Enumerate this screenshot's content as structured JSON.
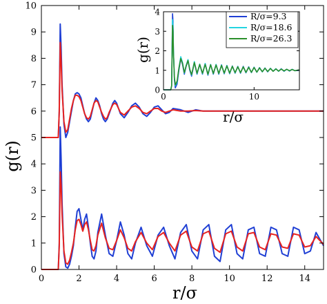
{
  "chart_data": [
    {
      "type": "line",
      "role": "main",
      "xlabel": "r/σ",
      "ylabel": "g(r)",
      "xlim": [
        0,
        15
      ],
      "ylim": [
        0,
        10
      ],
      "x_ticks": [
        0,
        2,
        4,
        6,
        8,
        10,
        12,
        14
      ],
      "y_ticks": [
        0,
        1,
        2,
        3,
        4,
        5,
        6,
        7,
        8,
        9,
        10
      ],
      "grid": false,
      "colors": {
        "blue": "#1f3fd4",
        "red": "#e8231f"
      },
      "series": [
        {
          "color": "blue",
          "curve": "offset",
          "x": [
            0,
            0.8,
            0.9,
            0.95,
            1.0,
            1.05,
            1.1,
            1.2,
            1.3,
            1.4,
            1.5,
            1.6,
            1.7,
            1.8,
            1.9,
            2.0,
            2.1,
            2.2,
            2.3,
            2.4,
            2.5,
            2.6,
            2.7,
            2.8,
            2.9,
            3.0,
            3.1,
            3.2,
            3.3,
            3.4,
            3.5,
            3.6,
            3.7,
            3.8,
            3.9,
            4.0,
            4.2,
            4.4,
            4.6,
            4.8,
            5.0,
            5.2,
            5.4,
            5.6,
            5.8,
            6.0,
            6.2,
            6.4,
            6.6,
            6.8,
            7.0,
            7.4,
            7.8,
            8.2,
            8.6,
            9.0,
            9.5,
            10.0,
            11.0,
            12.0,
            13.0,
            14.0,
            15.0
          ],
          "y": [
            5.0,
            5.0,
            5.0,
            6.0,
            9.3,
            8.4,
            7.0,
            5.5,
            5.0,
            5.2,
            5.6,
            6.0,
            6.4,
            6.65,
            6.7,
            6.65,
            6.5,
            6.2,
            5.9,
            5.7,
            5.6,
            5.7,
            6.0,
            6.3,
            6.5,
            6.4,
            6.2,
            5.9,
            5.7,
            5.6,
            5.7,
            5.9,
            6.1,
            6.3,
            6.4,
            6.3,
            5.9,
            5.75,
            5.95,
            6.2,
            6.3,
            6.15,
            5.9,
            5.8,
            5.95,
            6.15,
            6.2,
            6.05,
            5.9,
            5.95,
            6.1,
            6.05,
            5.95,
            6.05,
            6.0,
            6.0,
            6.0,
            6.0,
            6.0,
            6.0,
            6.0,
            6.0,
            6.0
          ]
        },
        {
          "color": "red",
          "curve": "offset",
          "x": [
            0,
            0.8,
            0.9,
            0.95,
            1.0,
            1.05,
            1.1,
            1.2,
            1.3,
            1.4,
            1.5,
            1.6,
            1.7,
            1.8,
            1.9,
            2.0,
            2.1,
            2.2,
            2.3,
            2.4,
            2.5,
            2.6,
            2.7,
            2.8,
            2.9,
            3.0,
            3.1,
            3.2,
            3.3,
            3.4,
            3.5,
            3.6,
            3.7,
            3.8,
            3.9,
            4.0,
            4.2,
            4.4,
            4.6,
            4.8,
            5.0,
            5.2,
            5.4,
            5.6,
            5.8,
            6.0,
            6.2,
            6.4,
            6.6,
            6.8,
            7.0,
            7.4,
            7.8,
            8.2,
            8.6,
            9.0,
            9.5,
            10.0,
            11.0,
            12.0,
            13.0,
            14.0,
            15.0
          ],
          "y": [
            5.0,
            5.0,
            5.0,
            6.0,
            8.6,
            7.9,
            6.8,
            5.6,
            5.2,
            5.3,
            5.7,
            6.1,
            6.4,
            6.6,
            6.6,
            6.55,
            6.4,
            6.15,
            5.9,
            5.75,
            5.7,
            5.8,
            6.05,
            6.3,
            6.4,
            6.35,
            6.15,
            5.95,
            5.8,
            5.7,
            5.75,
            5.95,
            6.1,
            6.25,
            6.3,
            6.25,
            5.95,
            5.85,
            6.0,
            6.15,
            6.2,
            6.1,
            5.95,
            5.9,
            6.0,
            6.1,
            6.1,
            6.0,
            5.95,
            6.0,
            6.05,
            6.0,
            6.0,
            6.02,
            6.0,
            6.0,
            6.0,
            6.0,
            6.0,
            6.0,
            6.0,
            6.0,
            6.0
          ]
        },
        {
          "color": "blue",
          "curve": "unshifted",
          "x": [
            0,
            0.8,
            0.9,
            0.95,
            1.0,
            1.05,
            1.1,
            1.2,
            1.3,
            1.4,
            1.5,
            1.6,
            1.7,
            1.8,
            1.9,
            2.0,
            2.1,
            2.2,
            2.3,
            2.4,
            2.5,
            2.6,
            2.7,
            2.8,
            2.9,
            3.0,
            3.2,
            3.4,
            3.6,
            3.8,
            4.0,
            4.2,
            4.4,
            4.6,
            4.8,
            5.0,
            5.3,
            5.6,
            5.9,
            6.2,
            6.5,
            6.8,
            7.1,
            7.4,
            7.7,
            8.0,
            8.3,
            8.6,
            8.9,
            9.2,
            9.5,
            9.8,
            10.1,
            10.4,
            10.7,
            11.0,
            11.3,
            11.6,
            11.9,
            12.2,
            12.5,
            12.8,
            13.1,
            13.4,
            13.7,
            14.0,
            14.3,
            14.6,
            15.0
          ],
          "y": [
            0,
            0,
            0,
            1.0,
            5.4,
            4.2,
            2.5,
            0.6,
            0.1,
            0.05,
            0.2,
            0.5,
            0.9,
            1.6,
            2.2,
            2.3,
            1.9,
            1.5,
            1.9,
            2.1,
            1.6,
            1.0,
            0.5,
            0.4,
            0.7,
            1.4,
            2.1,
            1.3,
            0.6,
            0.5,
            1.1,
            1.8,
            1.3,
            0.6,
            0.4,
            1.0,
            1.6,
            0.9,
            0.5,
            1.3,
            1.6,
            0.9,
            0.4,
            1.4,
            1.7,
            0.7,
            0.4,
            1.5,
            1.7,
            0.5,
            0.3,
            1.5,
            1.7,
            0.6,
            0.4,
            1.5,
            1.6,
            0.6,
            0.5,
            1.6,
            1.5,
            0.6,
            0.5,
            1.6,
            1.5,
            0.6,
            0.7,
            1.4,
            0.9
          ]
        },
        {
          "color": "red",
          "curve": "unshifted",
          "x": [
            0,
            0.8,
            0.9,
            0.95,
            1.0,
            1.05,
            1.1,
            1.2,
            1.3,
            1.4,
            1.5,
            1.6,
            1.7,
            1.8,
            1.9,
            2.0,
            2.1,
            2.2,
            2.3,
            2.4,
            2.5,
            2.6,
            2.7,
            2.8,
            2.9,
            3.0,
            3.2,
            3.4,
            3.6,
            3.8,
            4.0,
            4.2,
            4.4,
            4.6,
            4.8,
            5.0,
            5.3,
            5.6,
            5.9,
            6.2,
            6.5,
            6.8,
            7.1,
            7.4,
            7.7,
            8.0,
            8.3,
            8.6,
            8.9,
            9.2,
            9.5,
            9.8,
            10.1,
            10.4,
            10.7,
            11.0,
            11.3,
            11.6,
            11.9,
            12.2,
            12.5,
            12.8,
            13.1,
            13.4,
            13.7,
            14.0,
            14.3,
            14.6,
            15.0
          ],
          "y": [
            0,
            0,
            0,
            0.9,
            3.7,
            3.2,
            2.1,
            0.7,
            0.25,
            0.2,
            0.35,
            0.65,
            1.0,
            1.5,
            1.85,
            1.9,
            1.7,
            1.45,
            1.7,
            1.8,
            1.5,
            1.1,
            0.75,
            0.7,
            0.9,
            1.3,
            1.75,
            1.2,
            0.8,
            0.75,
            1.1,
            1.5,
            1.2,
            0.8,
            0.7,
            1.05,
            1.4,
            1.0,
            0.75,
            1.25,
            1.4,
            1.0,
            0.7,
            1.3,
            1.45,
            0.85,
            0.7,
            1.35,
            1.45,
            0.8,
            0.65,
            1.35,
            1.45,
            0.85,
            0.7,
            1.35,
            1.4,
            0.85,
            0.75,
            1.35,
            1.3,
            0.85,
            0.8,
            1.35,
            1.3,
            0.85,
            0.9,
            1.25,
            0.95
          ]
        }
      ]
    },
    {
      "type": "line",
      "role": "inset",
      "xlabel": "r/σ",
      "ylabel": "g(r)",
      "xlim": [
        0,
        15
      ],
      "ylim": [
        0,
        4
      ],
      "x_ticks": [
        0,
        10
      ],
      "y_ticks": [
        0,
        1,
        2,
        3,
        4
      ],
      "grid": false,
      "legend_placement": "top-right",
      "colors": {
        "R/σ=9.3": "#1f3fd4",
        "R/σ=18.6": "#22d3e0",
        "R/σ=26.3": "#2a8f2a"
      },
      "series": [
        {
          "name": "R/σ=9.3",
          "x": [
            0,
            0.8,
            0.9,
            1.0,
            1.05,
            1.1,
            1.2,
            1.3,
            1.5,
            1.7,
            1.9,
            2.1,
            2.3,
            2.5,
            2.7,
            2.9,
            3.1,
            3.4,
            3.7,
            4.0,
            4.3,
            4.6,
            4.9,
            5.2,
            5.5,
            5.8,
            6.1,
            6.4,
            6.7,
            7.0,
            7.3,
            7.6,
            7.9,
            8.2,
            8.5,
            8.8,
            9.1,
            9.4,
            9.7,
            10.0,
            10.3,
            10.6,
            10.9,
            11.2,
            11.5,
            11.8,
            12.1,
            12.4,
            12.7,
            13.0,
            13.3,
            13.6,
            13.9,
            14.2,
            14.5,
            15.0
          ],
          "y": [
            0,
            0,
            0.2,
            3.9,
            3.5,
            2.0,
            0.5,
            0.1,
            0.3,
            1.0,
            1.6,
            1.3,
            0.8,
            1.2,
            1.5,
            1.0,
            0.7,
            1.4,
            0.8,
            1.3,
            0.8,
            1.35,
            0.75,
            1.3,
            0.8,
            1.3,
            0.8,
            1.28,
            0.82,
            1.25,
            0.82,
            1.22,
            0.85,
            1.2,
            0.85,
            1.2,
            0.87,
            1.18,
            0.88,
            1.16,
            0.9,
            1.14,
            0.92,
            1.12,
            0.92,
            1.1,
            0.95,
            1.08,
            0.95,
            1.08,
            0.95,
            1.06,
            0.96,
            1.05,
            0.98,
            1.0
          ]
        },
        {
          "name": "R/σ=18.6",
          "x": [
            0,
            0.8,
            0.9,
            1.0,
            1.05,
            1.1,
            1.2,
            1.3,
            1.5,
            1.7,
            1.9,
            2.1,
            2.3,
            2.5,
            2.7,
            2.9,
            3.1,
            3.4,
            3.7,
            4.0,
            4.3,
            4.6,
            4.9,
            5.2,
            5.5,
            5.8,
            6.1,
            6.4,
            6.7,
            7.0,
            7.3,
            7.6,
            7.9,
            8.2,
            8.5,
            8.8,
            9.1,
            9.4,
            9.7,
            10.0,
            10.3,
            10.6,
            10.9,
            11.2,
            11.5,
            11.8,
            12.1,
            12.4,
            12.7,
            13.0,
            13.3,
            13.6,
            13.9,
            14.2,
            14.5,
            15.0
          ],
          "y": [
            0,
            0,
            0.2,
            3.6,
            3.3,
            2.0,
            0.6,
            0.2,
            0.4,
            1.1,
            1.7,
            1.4,
            0.85,
            1.25,
            1.55,
            1.05,
            0.75,
            1.45,
            0.82,
            1.32,
            0.82,
            1.35,
            0.78,
            1.3,
            0.82,
            1.3,
            0.82,
            1.27,
            0.84,
            1.24,
            0.84,
            1.21,
            0.86,
            1.19,
            0.87,
            1.18,
            0.88,
            1.16,
            0.89,
            1.15,
            0.9,
            1.13,
            0.92,
            1.11,
            0.93,
            1.1,
            0.95,
            1.08,
            0.95,
            1.07,
            0.96,
            1.05,
            0.97,
            1.05,
            0.98,
            1.02
          ]
        },
        {
          "name": "R/σ=26.3",
          "x": [
            0,
            0.8,
            0.9,
            1.0,
            1.05,
            1.1,
            1.2,
            1.3,
            1.5,
            1.7,
            1.9,
            2.1,
            2.3,
            2.5,
            2.7,
            2.9,
            3.1,
            3.4,
            3.7,
            4.0,
            4.3,
            4.6,
            4.9,
            5.2,
            5.5,
            5.8,
            6.1,
            6.4,
            6.7,
            7.0,
            7.3,
            7.6,
            7.9,
            8.2,
            8.5,
            8.8,
            9.1,
            9.4,
            9.7,
            10.0,
            10.3,
            10.6,
            10.9,
            11.2,
            11.5,
            11.8,
            12.1,
            12.4,
            12.7,
            13.0,
            13.3,
            13.6,
            13.9,
            14.2,
            14.5,
            15.0
          ],
          "y": [
            0,
            0,
            0.2,
            3.3,
            3.0,
            1.9,
            0.65,
            0.25,
            0.45,
            1.1,
            1.6,
            1.35,
            0.88,
            1.22,
            1.5,
            1.05,
            0.78,
            1.4,
            0.85,
            1.3,
            0.85,
            1.3,
            0.8,
            1.28,
            0.84,
            1.27,
            0.84,
            1.25,
            0.86,
            1.22,
            0.86,
            1.2,
            0.88,
            1.18,
            0.88,
            1.17,
            0.9,
            1.15,
            0.9,
            1.14,
            0.91,
            1.12,
            0.93,
            1.1,
            0.94,
            1.09,
            0.95,
            1.07,
            0.96,
            1.06,
            0.97,
            1.05,
            0.98,
            1.04,
            0.98,
            1.02
          ]
        }
      ]
    }
  ]
}
